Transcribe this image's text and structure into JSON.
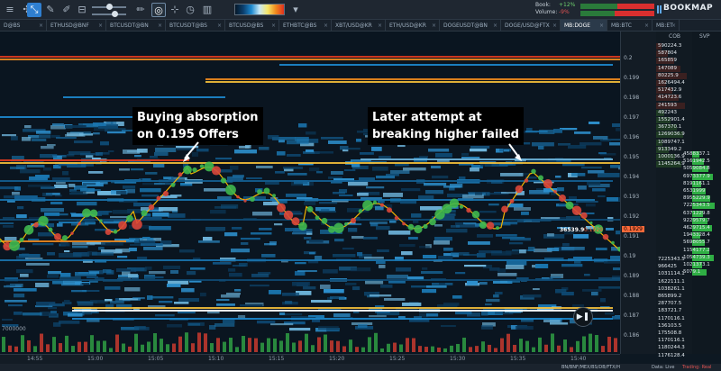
{
  "toolbar": {
    "icons": [
      "list-icon",
      "crosshair-icon",
      "cursor-icon",
      "pencil-icon",
      "edit-icon",
      "sliders-icon",
      "brush-icon",
      "pin-icon",
      "grid-icon",
      "stopwatch-icon",
      "bars-icon"
    ],
    "book_label": "Book:",
    "book_value": "+12%",
    "volume_label": "Volume:",
    "volume_value": "-9%",
    "brand": "BOOKMAP"
  },
  "tabs": [
    {
      "label": "D@BS",
      "active": false
    },
    {
      "label": "ETHUSD@BNF",
      "active": false
    },
    {
      "label": "BTCUSDT@BN",
      "active": false
    },
    {
      "label": "BTCUSDT@BS",
      "active": false
    },
    {
      "label": "BTCUSD@BS",
      "active": false
    },
    {
      "label": "ETHBTC@BS",
      "active": false
    },
    {
      "label": "XBT/USD@KR",
      "active": false
    },
    {
      "label": "ETH/USD@KR",
      "active": false
    },
    {
      "label": "DOGEUSDT@BN",
      "active": false
    },
    {
      "label": "DOGE/USD@FTX",
      "active": false
    },
    {
      "label": "MB:DOGE",
      "active": true
    },
    {
      "label": "MB:BTC",
      "active": false
    },
    {
      "label": "MB:ET",
      "active": false
    }
  ],
  "price_axis": {
    "labels": [
      "0.2",
      "0.199",
      "0.198",
      "0.197",
      "0.196",
      "0.195",
      "0.194",
      "0.193",
      "0.192",
      "0.191",
      "0.19",
      "0.189",
      "0.188",
      "0.187",
      "0.186"
    ],
    "highlight": "0.1929"
  },
  "cob": {
    "header": "COB",
    "values": [
      "590224.3",
      "587804",
      "165859",
      "147089",
      "80225.9",
      "1626494.4",
      "517432.9",
      "414723.6",
      "241593",
      "492243",
      "1552901.4",
      "367370.1",
      "1269036.9",
      "1089747.1",
      "913349.2",
      "1000136.9",
      "1145264.9"
    ]
  },
  "svp": {
    "header": "SVP",
    "values": [
      "4588337.1",
      "5161942.5",
      "5059084.8",
      "6973377.9",
      "8191161.1",
      "6531999",
      "8955229.9",
      "7225343.5",
      "6371229.8",
      "9229579.7",
      "4629715.4",
      "1943328.4",
      "5698055.7",
      "1154177.2",
      "1054739.3",
      "1021373.1",
      "5079.1"
    ]
  },
  "bid_column": {
    "values": [
      "7225343.5",
      "966425",
      "1031114.1",
      "1622111.1",
      "1038261.1",
      "865899.2",
      "287707.5",
      "183721.7",
      "1170116.1",
      "136103.5",
      "175508.8",
      "1170116.1",
      "1180244.3",
      "1176128.4"
    ]
  },
  "time_axis": {
    "labels": [
      "14:55",
      "15:00",
      "15:05",
      "15:10",
      "15:15",
      "15:20",
      "15:25",
      "15:30",
      "15:35",
      "15:40"
    ]
  },
  "annotations": {
    "left": [
      "Buying absorption",
      "on 0.195 Offers"
    ],
    "right": [
      "Later attempt at",
      "breaking higher failed"
    ]
  },
  "chart": {
    "last_volume": "36539.9",
    "last_price": "0.1929",
    "volume_label": "7000000"
  },
  "status": {
    "feeds": "BN/BNF/MEX/BS/DB/FTX/H",
    "data": "Data: Live",
    "trading": "Trading: Real"
  },
  "colors": {
    "accent": "#2f7fd0",
    "bubble_buy": "#3fb84f",
    "bubble_sell": "#d9463a",
    "line": "#f4b400"
  }
}
